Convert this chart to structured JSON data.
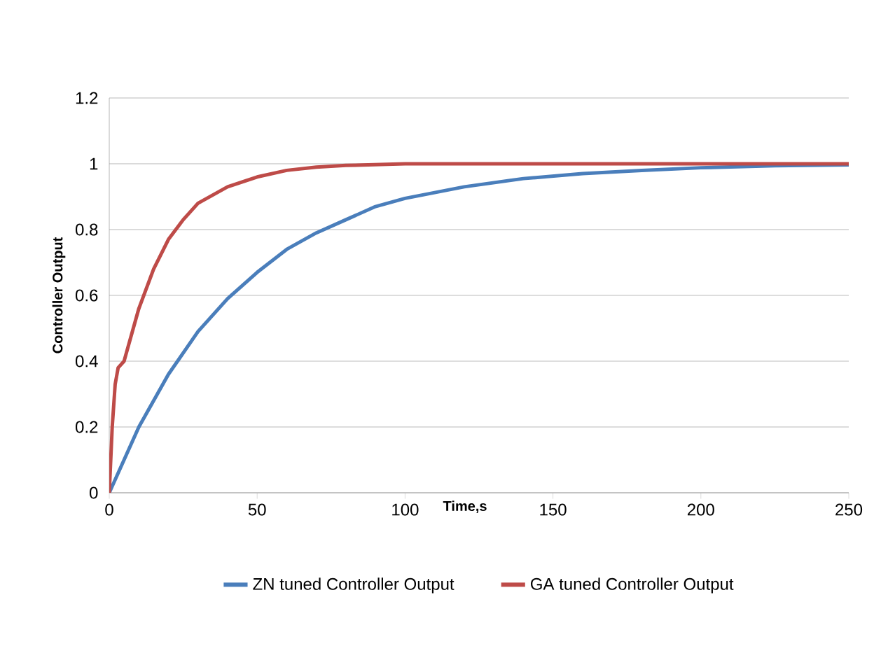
{
  "chart_data": {
    "type": "line",
    "xlabel": "Time,s",
    "ylabel": "Controller Output",
    "xlim": [
      0,
      250
    ],
    "ylim": [
      0,
      1.2
    ],
    "xticks": [
      0,
      50,
      100,
      150,
      200,
      250
    ],
    "yticks": [
      0,
      0.2,
      0.4,
      0.6,
      0.8,
      1,
      1.2
    ],
    "grid": "y",
    "legend": "bottom",
    "marker": "none",
    "line_style": "solid",
    "series": [
      {
        "name": "ZN tuned Controller Output",
        "color": "#4a7ebb",
        "x": [
          0,
          5,
          10,
          20,
          30,
          40,
          50,
          60,
          70,
          80,
          90,
          100,
          120,
          140,
          160,
          180,
          200,
          225,
          250
        ],
        "values": [
          0,
          0.1,
          0.2,
          0.36,
          0.49,
          0.59,
          0.67,
          0.74,
          0.79,
          0.83,
          0.87,
          0.895,
          0.93,
          0.955,
          0.97,
          0.98,
          0.988,
          0.994,
          0.997
        ]
      },
      {
        "name": "GA tuned Controller Output",
        "color": "#be4b48",
        "x": [
          0,
          1,
          2,
          3,
          5,
          10,
          15,
          20,
          25,
          30,
          40,
          50,
          60,
          70,
          80,
          100,
          150,
          200,
          250
        ],
        "values": [
          0,
          0.2,
          0.33,
          0.38,
          0.4,
          0.56,
          0.68,
          0.77,
          0.83,
          0.88,
          0.93,
          0.96,
          0.98,
          0.99,
          0.995,
          1,
          1,
          1,
          1
        ]
      }
    ]
  }
}
